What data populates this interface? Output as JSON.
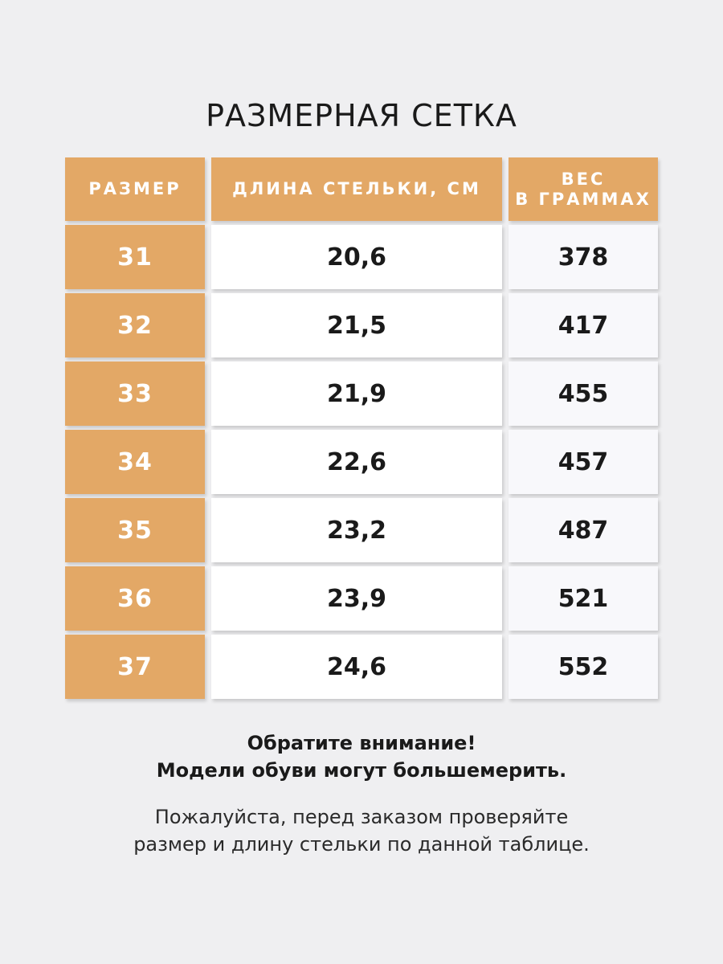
{
  "title": "РАЗМЕРНАЯ СЕТКА",
  "table": {
    "headers": {
      "size": "РАЗМЕР",
      "insole_length": "ДЛИНА СТЕЛЬКИ, СМ",
      "weight_line1": "ВЕС",
      "weight_line2": "В ГРАММАХ"
    },
    "rows": [
      {
        "size": "31",
        "length": "20,6",
        "weight": "378"
      },
      {
        "size": "32",
        "length": "21,5",
        "weight": "417"
      },
      {
        "size": "33",
        "length": "21,9",
        "weight": "455"
      },
      {
        "size": "34",
        "length": "22,6",
        "weight": "457"
      },
      {
        "size": "35",
        "length": "23,2",
        "weight": "487"
      },
      {
        "size": "36",
        "length": "23,9",
        "weight": "521"
      },
      {
        "size": "37",
        "length": "24,6",
        "weight": "552"
      }
    ]
  },
  "notice": {
    "line1": "Обратите внимание!",
    "line2": "Модели обуви могут большемерить."
  },
  "info": {
    "line1": "Пожалуйста, перед заказом проверяйте",
    "line2": "размер и длину стельки по данной таблице."
  },
  "colors": {
    "accent": "#e3a866",
    "background": "#efeff1",
    "cell_white": "#ffffff",
    "cell_light": "#f8f8fb",
    "text": "#1a1a1a"
  }
}
